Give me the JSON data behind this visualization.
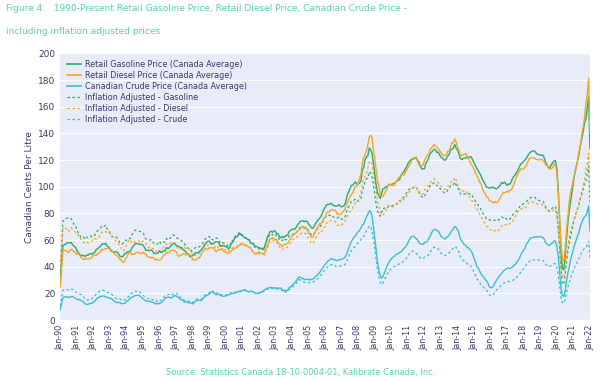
{
  "title_line1": "Figure 4:   1990-Present Retail Gasoline Price, Retail Diesel Price, Canadian Crude Price -",
  "title_line2": "including inflation adjusted prices",
  "title_color": "#5ecfb1",
  "ylabel": "Canadian Cents Per Litre",
  "source": "Source: Statistics Canada 18-10-0004-01, Kalibrate Canada, Inc.",
  "source_color": "#5ecfb1",
  "ylim": [
    0,
    200
  ],
  "yticks": [
    0,
    20,
    40,
    60,
    80,
    100,
    120,
    140,
    160,
    180,
    200
  ],
  "color_gasoline": "#2eaa6e",
  "color_diesel": "#f5a623",
  "color_crude": "#3bbfcf",
  "bg_color": "#e8ecf8",
  "legend_labels": [
    "Retail Gasoline Price (Canada Average)",
    "Retail Diesel Price (Canada Average)",
    "Canadian Crude Price (Canada Average)",
    "Inflation Adjusted - Gasoline",
    "Inflation Adjusted - Diesel",
    "Inflation Adjusted - Crude"
  ],
  "x_labels": [
    "Jan-90",
    "Jan-91",
    "Jan-92",
    "Jan-93",
    "Jan-94",
    "Jan-95",
    "Jan-96",
    "Jan-97",
    "Jan-98",
    "Jan-99",
    "Jan-00",
    "Jan-01",
    "Jan-02",
    "Jan-03",
    "Jan-04",
    "Jan-05",
    "Jan-06",
    "Jan-07",
    "Jan-08",
    "Jan-09",
    "Jan-10",
    "Jan-11",
    "Jan-12",
    "Jan-13",
    "Jan-14",
    "Jan-15",
    "Jan-16",
    "Jan-17",
    "Jan-18",
    "Jan-19",
    "Jan-20",
    "Jan-21",
    "Jan-22"
  ]
}
